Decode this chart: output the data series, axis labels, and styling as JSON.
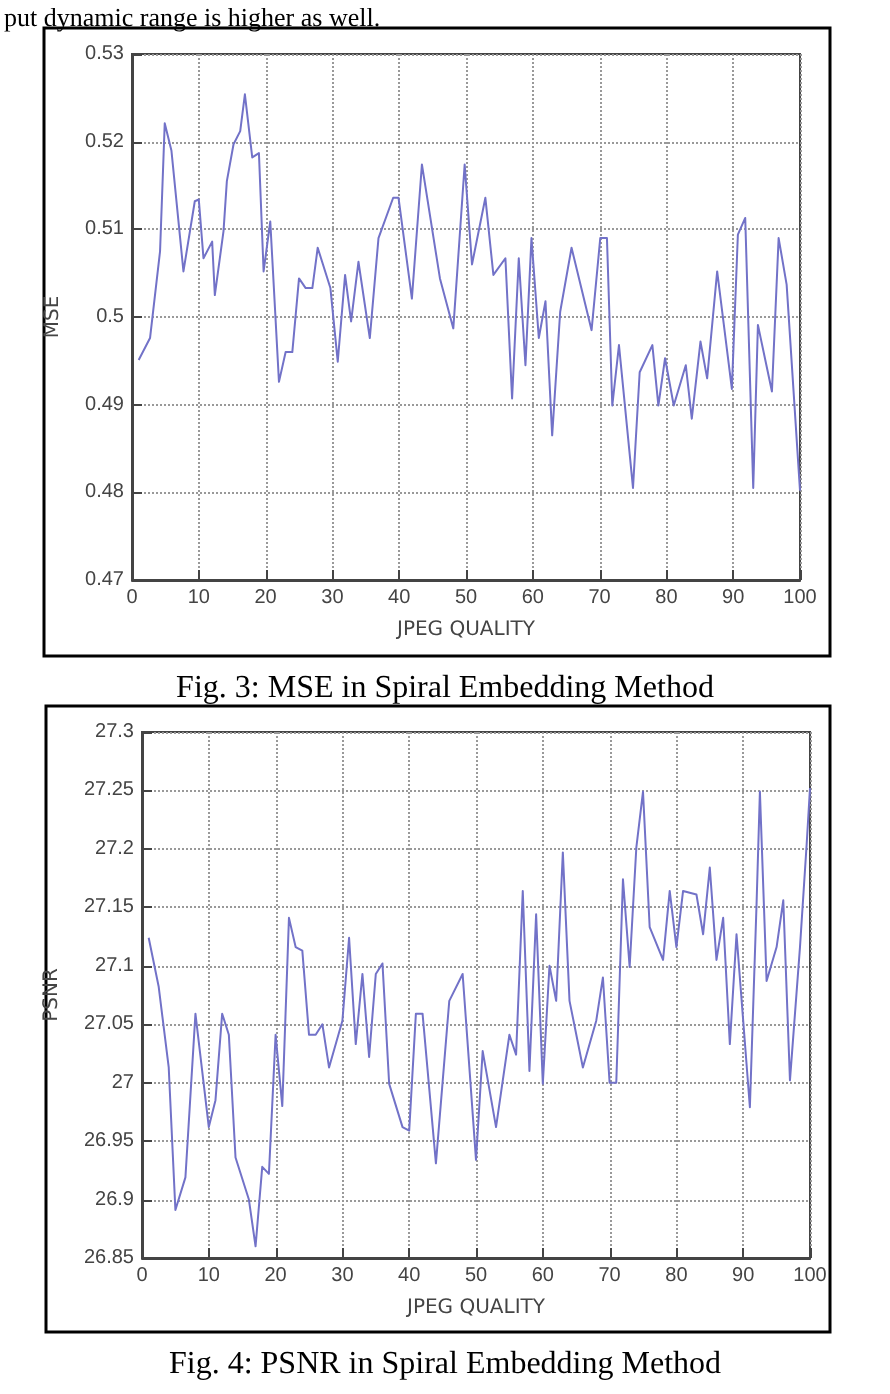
{
  "chart_data": [
    {
      "type": "line",
      "ylabel": "MSE",
      "xlabel": "JPEG QUALITY",
      "annotations": [
        "put dynamic range is higher as well.",
        "Fig. 3: MSE in Spiral Embedding Method"
      ],
      "color": "#7272c8",
      "marker": "none",
      "grid": true,
      "x": [
        1,
        2.7,
        4.2,
        4.9,
        5.9,
        7.7,
        9.4,
        10,
        10.7,
        12,
        12.4,
        13.7,
        14.2,
        15.2,
        16.2,
        16.9,
        18,
        19,
        19.7,
        20.7,
        22,
        23,
        24,
        25,
        26,
        27,
        27.8,
        29.7,
        30.8,
        31.9,
        32.8,
        33.9,
        35.6,
        36.9,
        39.1,
        39.9,
        41.9,
        43.4,
        46.1,
        48.1,
        49.8,
        50.9,
        52.9,
        54.1,
        55.9,
        56.9,
        57.9,
        58.9,
        59.8,
        60.9,
        61.9,
        62.9,
        64.1,
        65.8,
        68.8,
        70.1,
        71.1,
        71.9,
        72.9,
        75,
        76,
        77.9,
        78.8,
        79.8,
        81.1,
        82.9,
        83.8,
        85.1,
        86.1,
        87.6,
        89.8,
        90.7,
        91.8,
        93,
        93.7,
        95.8,
        96.8,
        98,
        100
      ],
      "values": [
        0.4951,
        0.4976,
        0.5075,
        0.5221,
        0.519,
        0.5052,
        0.5132,
        0.5134,
        0.5067,
        0.5086,
        0.5025,
        0.5098,
        0.5155,
        0.5197,
        0.5212,
        0.5254,
        0.5182,
        0.5187,
        0.5052,
        0.5109,
        0.4926,
        0.496,
        0.496,
        0.5044,
        0.5033,
        0.5033,
        0.5079,
        0.5033,
        0.4949,
        0.5048,
        0.4995,
        0.5063,
        0.4976,
        0.509,
        0.5136,
        0.5136,
        0.5021,
        0.5174,
        0.5044,
        0.4987,
        0.5174,
        0.506,
        0.5136,
        0.5048,
        0.5067,
        0.4907,
        0.5067,
        0.4945,
        0.509,
        0.4976,
        0.5018,
        0.4865,
        0.5006,
        0.5079,
        0.4985,
        0.509,
        0.509,
        0.4899,
        0.4968,
        0.4805,
        0.4937,
        0.4968,
        0.4899,
        0.4953,
        0.4899,
        0.4945,
        0.4884,
        0.4972,
        0.493,
        0.5052,
        0.4918,
        0.5094,
        0.5113,
        0.4805,
        0.4991,
        0.4915,
        0.509,
        0.5037,
        0.4802
      ],
      "xlim": [
        0,
        100
      ],
      "xticks": [
        0,
        10,
        20,
        30,
        40,
        50,
        60,
        70,
        80,
        90,
        100
      ],
      "ylim": [
        0.47,
        0.53
      ],
      "yticks": [
        0.47,
        0.48,
        0.49,
        0.5,
        0.51,
        0.52,
        0.53
      ]
    },
    {
      "type": "line",
      "ylabel": "PSNR",
      "xlabel": "JPEG QUALITY",
      "annotations": [
        "Fig. 4: PSNR in Spiral Embedding Method"
      ],
      "color": "#7272c8",
      "marker": "none",
      "grid": true,
      "x": [
        1,
        2.5,
        4,
        5,
        6.5,
        8,
        10,
        11,
        12,
        13,
        14,
        16,
        17,
        18,
        19,
        20,
        21,
        22,
        23,
        24,
        25,
        26,
        27,
        28,
        30,
        31,
        32,
        33,
        34,
        35,
        36,
        37,
        39,
        40,
        41,
        42,
        44,
        46,
        48,
        50,
        51,
        53,
        55,
        56,
        57,
        58,
        59,
        60,
        61,
        62,
        63,
        64,
        66,
        68,
        69,
        70,
        71,
        72,
        73,
        74,
        75,
        76,
        78,
        79,
        80,
        81,
        83,
        84,
        85,
        86,
        87,
        88,
        89,
        91,
        92,
        92.5,
        93.5,
        95,
        96,
        97,
        98.5,
        99.5,
        100
      ],
      "values": [
        27.124,
        27.082,
        27.013,
        26.891,
        26.919,
        27.059,
        26.962,
        26.985,
        27.059,
        27.041,
        26.936,
        26.9,
        26.86,
        26.928,
        26.922,
        27.041,
        26.98,
        27.141,
        27.116,
        27.113,
        27.041,
        27.041,
        27.05,
        27.013,
        27.053,
        27.124,
        27.033,
        27.093,
        27.022,
        27.093,
        27.102,
        26.999,
        26.962,
        26.959,
        27.059,
        27.059,
        26.931,
        27.07,
        27.093,
        26.934,
        27.027,
        26.962,
        27.041,
        27.024,
        27.164,
        27.01,
        27.144,
        26.999,
        27.1,
        27.07,
        27.197,
        27.07,
        27.013,
        27.053,
        27.09,
        27.0,
        27.0,
        27.174,
        27.099,
        27.201,
        27.249,
        27.133,
        27.105,
        27.164,
        27.116,
        27.164,
        27.161,
        27.127,
        27.184,
        27.105,
        27.141,
        27.033,
        27.127,
        26.979,
        27.153,
        27.249,
        27.087,
        27.116,
        27.156,
        27.002,
        27.116,
        27.204,
        27.252
      ],
      "xlim": [
        0,
        100
      ],
      "xticks": [
        0,
        10,
        20,
        30,
        40,
        50,
        60,
        70,
        80,
        90,
        100
      ],
      "ylim": [
        26.85,
        27.3
      ],
      "yticks": [
        26.85,
        26.9,
        26.95,
        27,
        27.05,
        27.1,
        27.15,
        27.2,
        27.25,
        27.3
      ]
    }
  ]
}
